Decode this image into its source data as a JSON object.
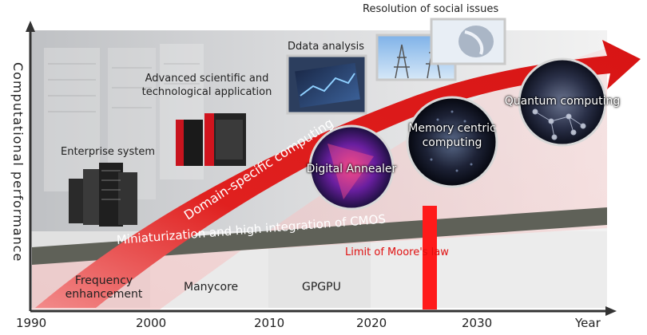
{
  "axes": {
    "y_label": "Computational performance",
    "x_label": "Year",
    "x_ticks": [
      "1990",
      "2000",
      "2010",
      "2020",
      "2030"
    ]
  },
  "bands": {
    "cmos": "Miniaturization and high integration of CMOS",
    "domain_specific": "Domain-specific computing"
  },
  "eras": {
    "frequency": "Frequency\nenhancement",
    "manycore": "Manycore",
    "gpgpu": "GPGPU"
  },
  "milestones": {
    "enterprise": "Enterprise system",
    "scientific": "Advanced scientific and\ntechnological application",
    "data_analysis": "Ddata analysis",
    "social_issues": "Resolution of social issues",
    "moore_limit": "Limit of\nMoore's law"
  },
  "technologies": {
    "digital_annealer": "Digital Annealer",
    "memory_centric": "Memory centric\ncomputing",
    "quantum": "Quantum computing"
  },
  "colors": {
    "arrow_red": "#e0201f",
    "cmos_band": "#5f6158",
    "moore_red": "#ff1a1a"
  }
}
